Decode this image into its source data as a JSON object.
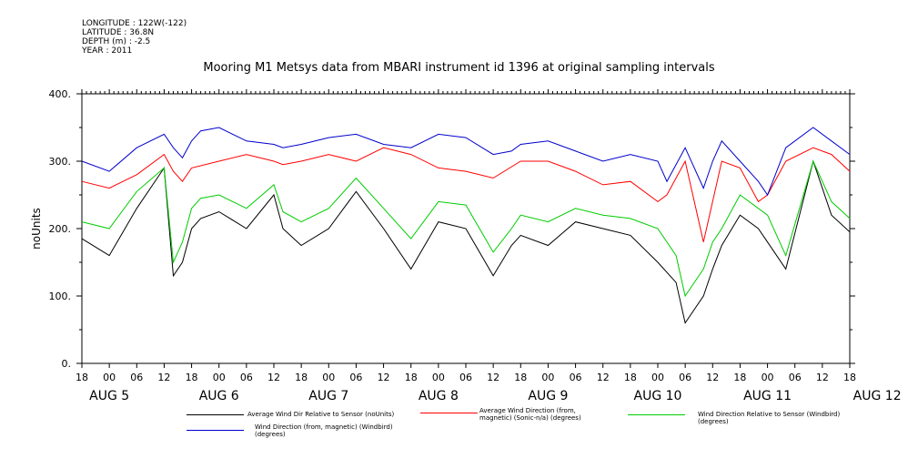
{
  "meta": {
    "longitude": "LONGITUDE : 122W(-122)",
    "latitude": "LATITUDE : 36.8N",
    "depth": "DEPTH (m) : -2.5",
    "year": "YEAR : 2011"
  },
  "chart_data": {
    "type": "line",
    "title": "Mooring M1 Metsys data from MBARI instrument id 1396 at original sampling intervals",
    "ylabel": "noUnits",
    "ylim": [
      0,
      400
    ],
    "yticks": [
      "0.",
      "100.",
      "200.",
      "300.",
      "400."
    ],
    "xlim": [
      0,
      168
    ],
    "x_unit": "hours since 2011-08-04 18:00",
    "hour_ticks": [
      "18",
      "00",
      "06",
      "12",
      "18",
      "00",
      "06",
      "12",
      "18",
      "00",
      "06",
      "12",
      "18",
      "00",
      "06",
      "12",
      "18",
      "00",
      "06",
      "12",
      "18",
      "00",
      "06",
      "12",
      "18",
      "00",
      "06",
      "12",
      "18"
    ],
    "day_labels": [
      "AUG  5",
      "AUG  6",
      "AUG  7",
      "AUG  8",
      "AUG  9",
      "AUG 10",
      "AUG 11",
      "AUG 12"
    ],
    "series": [
      {
        "name": "Average Wind Dir Relative to Sensor (noUnits)",
        "color": "#000000",
        "x": [
          0,
          6,
          12,
          18,
          20,
          22,
          24,
          26,
          30,
          36,
          42,
          44,
          48,
          54,
          60,
          66,
          72,
          78,
          84,
          90,
          94,
          96,
          102,
          108,
          114,
          120,
          126,
          130,
          132,
          136,
          138,
          140,
          144,
          148,
          150,
          154,
          160,
          164,
          168
        ],
        "y": [
          185,
          160,
          230,
          290,
          130,
          150,
          200,
          215,
          225,
          200,
          250,
          200,
          175,
          200,
          255,
          200,
          140,
          210,
          200,
          130,
          175,
          190,
          175,
          210,
          200,
          190,
          150,
          120,
          60,
          100,
          140,
          175,
          220,
          200,
          180,
          140,
          300,
          220,
          195
        ]
      },
      {
        "name": "Average Wind Direction (from, magnetic) (Sonic-n/a) (degrees)",
        "color": "#ff0000",
        "x": [
          0,
          6,
          12,
          18,
          20,
          22,
          24,
          30,
          36,
          42,
          44,
          48,
          54,
          60,
          66,
          72,
          78,
          84,
          90,
          96,
          102,
          108,
          114,
          120,
          126,
          128,
          132,
          136,
          140,
          144,
          148,
          150,
          154,
          160,
          164,
          168
        ],
        "y": [
          270,
          260,
          280,
          310,
          285,
          270,
          290,
          300,
          310,
          300,
          295,
          300,
          310,
          300,
          320,
          310,
          290,
          285,
          275,
          300,
          300,
          285,
          265,
          270,
          240,
          250,
          300,
          180,
          300,
          290,
          240,
          250,
          300,
          320,
          310,
          285
        ]
      },
      {
        "name": "Wind Direction Relative to Sensor (Windbird) (degrees)",
        "color": "#00cc00",
        "x": [
          0,
          6,
          12,
          18,
          20,
          22,
          24,
          26,
          30,
          36,
          42,
          44,
          48,
          54,
          60,
          66,
          72,
          78,
          84,
          90,
          94,
          96,
          102,
          108,
          114,
          120,
          126,
          130,
          132,
          136,
          138,
          140,
          144,
          148,
          150,
          154,
          160,
          164,
          168
        ],
        "y": [
          210,
          200,
          255,
          290,
          150,
          180,
          230,
          245,
          250,
          230,
          265,
          225,
          210,
          230,
          275,
          230,
          185,
          240,
          235,
          165,
          200,
          220,
          210,
          230,
          220,
          215,
          200,
          160,
          100,
          140,
          180,
          200,
          250,
          230,
          220,
          160,
          300,
          240,
          215
        ]
      },
      {
        "name": "Wind Direction (from, magnetic) (Windbird) (degrees)",
        "color": "#0000cc",
        "x": [
          0,
          6,
          12,
          18,
          20,
          22,
          24,
          26,
          30,
          36,
          42,
          44,
          48,
          54,
          60,
          66,
          72,
          78,
          84,
          90,
          94,
          96,
          102,
          108,
          114,
          120,
          126,
          128,
          132,
          136,
          138,
          140,
          144,
          148,
          150,
          154,
          160,
          164,
          168
        ],
        "y": [
          300,
          285,
          320,
          340,
          320,
          305,
          330,
          345,
          350,
          330,
          325,
          320,
          325,
          335,
          340,
          325,
          320,
          340,
          335,
          310,
          315,
          325,
          330,
          315,
          300,
          310,
          300,
          270,
          320,
          260,
          300,
          330,
          300,
          270,
          250,
          320,
          350,
          330,
          310
        ]
      }
    ],
    "legend_position": "bottom"
  }
}
